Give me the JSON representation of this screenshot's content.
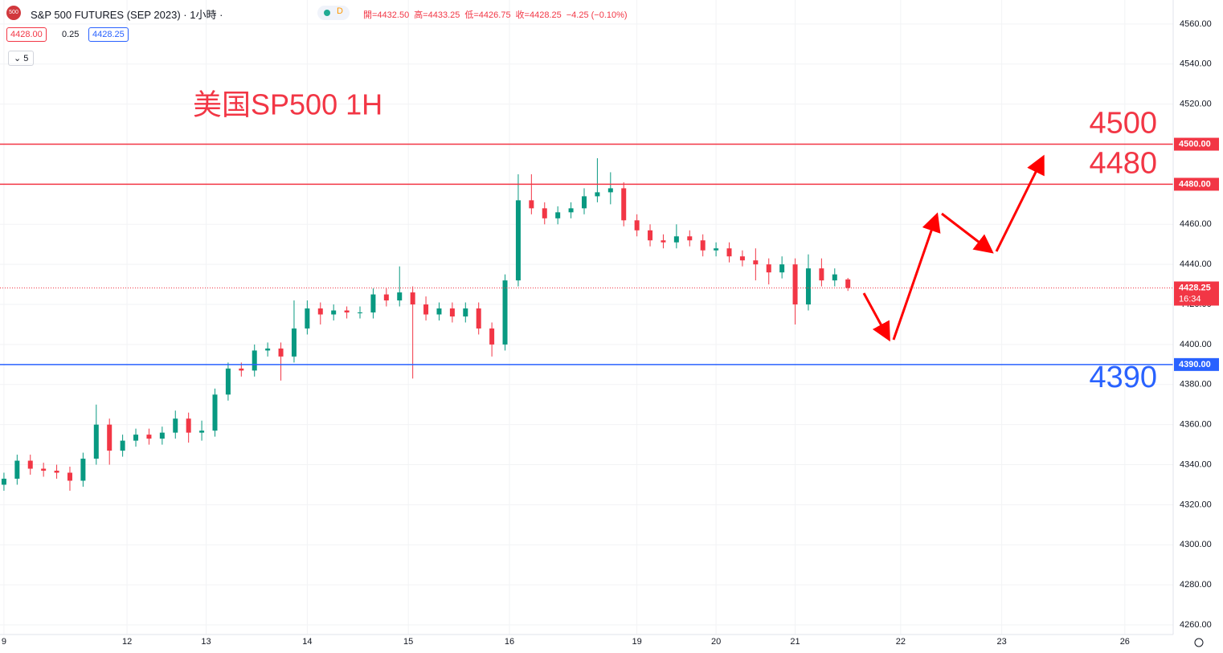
{
  "header": {
    "icon": "500",
    "symbol": "S&P 500 FUTURES (SEP 2023)",
    "interval": "1小時",
    "status": "D",
    "ohlc": [
      "開=4432.50",
      "高=4433.25",
      "低=4426.75",
      "收=4428.25",
      "−4.25 (−0.10%)"
    ],
    "bid": "4428.00",
    "spread": "0.25",
    "ask": "4428.25",
    "indicators": "5"
  },
  "chart_data": {
    "type": "candlestick",
    "title": "美国SP500 1H",
    "x": [
      0,
      3,
      6,
      9,
      12,
      15,
      18,
      21,
      24,
      27,
      30,
      33,
      36,
      39,
      42,
      45,
      48,
      51,
      54,
      57,
      60,
      63,
      66,
      69,
      72,
      75,
      78,
      81,
      84,
      87,
      90,
      93,
      96,
      99,
      102,
      105,
      108,
      111,
      114,
      117,
      120,
      123,
      126,
      129,
      132,
      135,
      138,
      141,
      144,
      147,
      150,
      153,
      156,
      159,
      162,
      165,
      168,
      171,
      174,
      177,
      180,
      183,
      186,
      189,
      192
    ],
    "open": [
      4330,
      4333,
      4342,
      4338,
      4337,
      4336,
      4332,
      4343,
      4360,
      4347,
      4352,
      4355,
      4353,
      4356,
      4363,
      4356,
      4357,
      4375,
      4388,
      4387,
      4397,
      4398,
      4394,
      4408,
      4418,
      4415,
      4417,
      4416,
      4416,
      4425,
      4422,
      4426,
      4420,
      4415,
      4418,
      4414,
      4418,
      4408,
      4400,
      4432,
      4472,
      4468,
      4463,
      4466,
      4468,
      4474,
      4476,
      4478,
      4462,
      4457,
      4452,
      4451,
      4454,
      4452,
      4447,
      4448,
      4444,
      4442,
      4440,
      4436,
      4440,
      4420,
      4438,
      4432,
      4432.5
    ],
    "high": [
      4336,
      4345,
      4345,
      4341,
      4340,
      4339,
      4346,
      4370,
      4363,
      4355,
      4358,
      4358,
      4359,
      4367,
      4366,
      4362,
      4378,
      4391,
      4391,
      4400,
      4401,
      4401,
      4422,
      4422,
      4421,
      4420,
      4419,
      4419,
      4428,
      4428,
      4439,
      4429,
      4424,
      4421,
      4421,
      4421,
      4421,
      4411,
      4435,
      4485,
      4485,
      4471,
      4469,
      4471,
      4478,
      4493,
      4486,
      4481,
      4465,
      4460,
      4455,
      4460,
      4457,
      4455,
      4451,
      4451,
      4447,
      4448,
      4443,
      4444,
      4443,
      4445,
      4443,
      4438,
      4433.25
    ],
    "low": [
      4327,
      4330,
      4335,
      4334,
      4333,
      4327,
      4329,
      4340,
      4340,
      4344,
      4349,
      4350,
      4350,
      4353,
      4351,
      4352,
      4354,
      4372,
      4384,
      4384,
      4394,
      4382,
      4391,
      4405,
      4410,
      4412,
      4413,
      4413,
      4413,
      4419,
      4419,
      4383,
      4412,
      4412,
      4411,
      4411,
      4405,
      4394,
      4397,
      4429,
      4465,
      4460,
      4460,
      4463,
      4465,
      4471,
      4470,
      4459,
      4454,
      4449,
      4448,
      4448,
      4449,
      4444,
      4444,
      4441,
      4439,
      4432,
      4430,
      4433,
      4410,
      4417,
      4429,
      4429,
      4426.75
    ],
    "close": [
      4333,
      4342,
      4338,
      4337,
      4336,
      4332,
      4343,
      4360,
      4347,
      4352,
      4355,
      4353,
      4356,
      4363,
      4356,
      4357,
      4375,
      4388,
      4387,
      4397,
      4398,
      4394,
      4408,
      4418,
      4415,
      4417,
      4416,
      4416,
      4425,
      4422,
      4426,
      4420,
      4415,
      4418,
      4414,
      4418,
      4408,
      4400,
      4432,
      4472,
      4468,
      4463,
      4466,
      4468,
      4474,
      4476,
      4478,
      4462,
      4457,
      4452,
      4451,
      4454,
      4452,
      4447,
      4448,
      4444,
      4442,
      4440,
      4436,
      4440,
      4420,
      4438,
      4432,
      4435,
      4428.25
    ],
    "up_color": "#089981",
    "down_color": "#f23645",
    "xlim": [
      -0.9,
      266
    ],
    "xticks": [
      {
        "value": 0,
        "label": "9"
      },
      {
        "value": 28,
        "label": "12"
      },
      {
        "value": 46,
        "label": "13"
      },
      {
        "value": 69,
        "label": "14"
      },
      {
        "value": 92,
        "label": "15"
      },
      {
        "value": 115,
        "label": "16"
      },
      {
        "value": 144,
        "label": "19"
      },
      {
        "value": 162,
        "label": "20"
      },
      {
        "value": 180,
        "label": "21"
      },
      {
        "value": 204,
        "label": "22"
      },
      {
        "value": 227,
        "label": "23"
      },
      {
        "value": 255,
        "label": "26"
      }
    ],
    "ylim": [
      4255.2,
      4572
    ],
    "yticks": [
      {
        "value": 4260,
        "label": "4260.00"
      },
      {
        "value": 4280,
        "label": "4280.00"
      },
      {
        "value": 4300,
        "label": "4300.00"
      },
      {
        "value": 4320,
        "label": "4320.00"
      },
      {
        "value": 4340,
        "label": "4340.00"
      },
      {
        "value": 4360,
        "label": "4360.00"
      },
      {
        "value": 4380,
        "label": "4380.00"
      },
      {
        "value": 4400,
        "label": "4400.00"
      },
      {
        "value": 4420,
        "label": "4420.00"
      },
      {
        "value": 4440,
        "label": "4440.00"
      },
      {
        "value": 4460,
        "label": "4460.00"
      },
      {
        "value": 4480,
        "label": "4480.00"
      },
      {
        "value": 4500,
        "label": "4500.00"
      },
      {
        "value": 4520,
        "label": "4520.00"
      },
      {
        "value": 4540,
        "label": "4540.00"
      },
      {
        "value": 4560,
        "label": "4560.00"
      }
    ],
    "grid": true,
    "levels": [
      {
        "value": 4500,
        "label": "4500.00",
        "color": "#f23645"
      },
      {
        "value": 4480,
        "label": "4480.00",
        "color": "#f23645"
      },
      {
        "value": 4390,
        "label": "4390.00",
        "color": "#2962ff"
      }
    ],
    "countdown": "16:34"
  }
}
